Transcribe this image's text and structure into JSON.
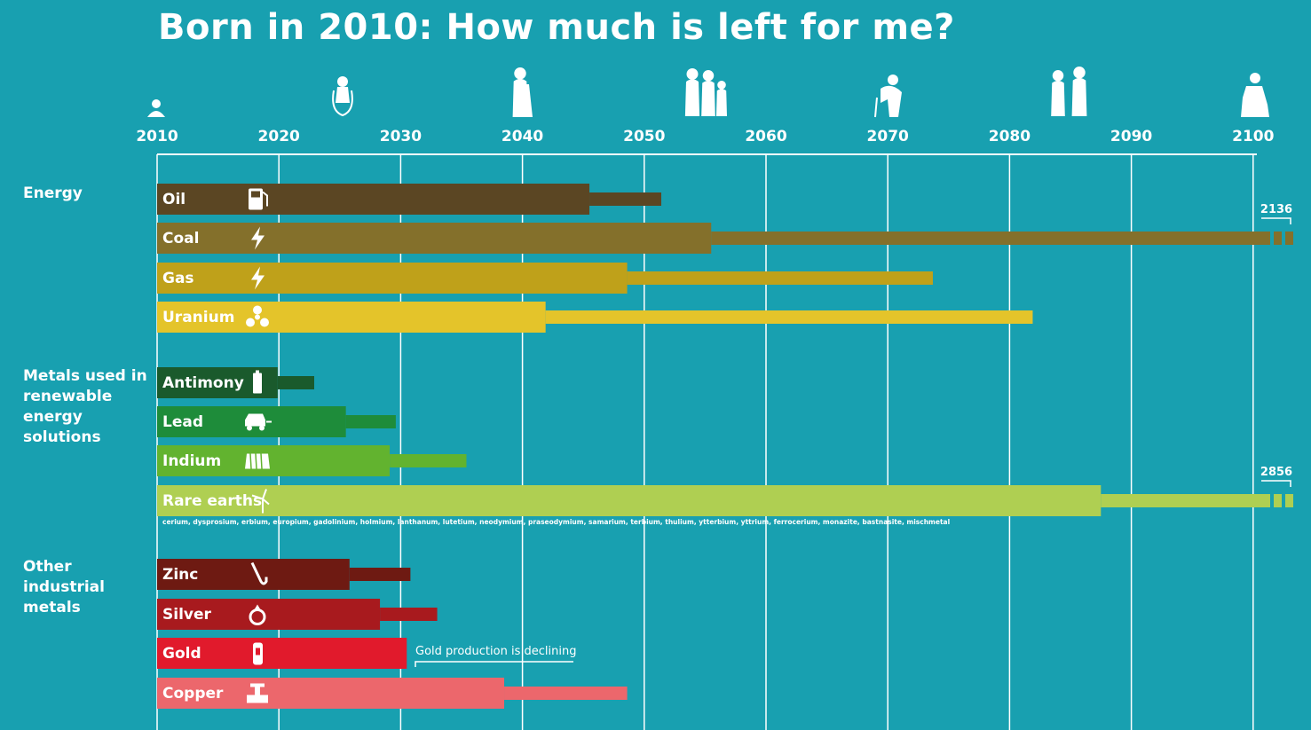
{
  "title": "Born in 2010: How much is left for me?",
  "chart_data": {
    "type": "bar",
    "title": "Born in 2010: How much is left for me?",
    "x_ticks": [
      2010,
      2020,
      2030,
      2040,
      2050,
      2060,
      2070,
      2080,
      2090,
      2100
    ],
    "xlim": [
      2010,
      2100
    ],
    "grid": true,
    "life_stage_icons": [
      "baby-icon",
      "child-jumping-icon",
      "wedding-couple-icon",
      "family-icon",
      "elderly-person-icon",
      "elderly-couple-icon",
      "old-person-seated-icon"
    ],
    "groups": [
      {
        "label": "Energy",
        "items": [
          {
            "name": "Oil",
            "icon": "fuel-pump-icon",
            "color": "#5b4623",
            "main_end": 2045.5,
            "tail_end": 2051.4
          },
          {
            "name": "Coal",
            "icon": "lightning-icon",
            "color": "#84702b",
            "main_end": 2055.5,
            "tail_end": 2136,
            "tail_label": "2136"
          },
          {
            "name": "Gas",
            "icon": "lightning-icon",
            "color": "#bfa11a",
            "main_end": 2048.6,
            "tail_end": 2073.7
          },
          {
            "name": "Uranium",
            "icon": "radiation-icon",
            "color": "#e4c42a",
            "main_end": 2041.9,
            "tail_end": 2081.9
          }
        ]
      },
      {
        "label": "Metals used in renewable energy solutions",
        "items": [
          {
            "name": "Antimony",
            "icon": "battery-icon",
            "color": "#1a5a2c",
            "main_end": 2019.9,
            "tail_end": 2022.9
          },
          {
            "name": "Lead",
            "icon": "electric-car-icon",
            "color": "#1e8c3a",
            "main_end": 2025.5,
            "tail_end": 2029.6
          },
          {
            "name": "Indium",
            "icon": "solar-panel-icon",
            "color": "#62b32f",
            "main_end": 2029.1,
            "tail_end": 2035.4
          },
          {
            "name": "Rare earths",
            "icon": "wind-turbine-icon",
            "color": "#afcf52",
            "main_end": 2087.5,
            "tail_end": 2856,
            "tail_label": "2856",
            "note": "cerium, dysprosium, erbium, europium, gadolinium, holmium, lanthanum, lutetium, neodymium, praseodymium, samarium, terbium, thulium, ytterbium, yttrium, ferrocerium, monazite, bastnasite, mischmetal"
          }
        ]
      },
      {
        "label": "Other industrial metals",
        "items": [
          {
            "name": "Zinc",
            "icon": "saxophone-icon",
            "color": "#6e1a12",
            "main_end": 2025.8,
            "tail_end": 2030.8
          },
          {
            "name": "Silver",
            "icon": "ring-icon",
            "color": "#a81a1e",
            "main_end": 2028.3,
            "tail_end": 2033.0
          },
          {
            "name": "Gold",
            "icon": "mobile-phone-icon",
            "color": "#e11a2c",
            "main_end": 2030.5,
            "tail_end": 2030.5,
            "annotation": "Gold production is declining"
          },
          {
            "name": "Copper",
            "icon": "water-tap-icon",
            "color": "#ec676c",
            "main_end": 2038.5,
            "tail_end": 2048.6
          }
        ]
      }
    ]
  }
}
